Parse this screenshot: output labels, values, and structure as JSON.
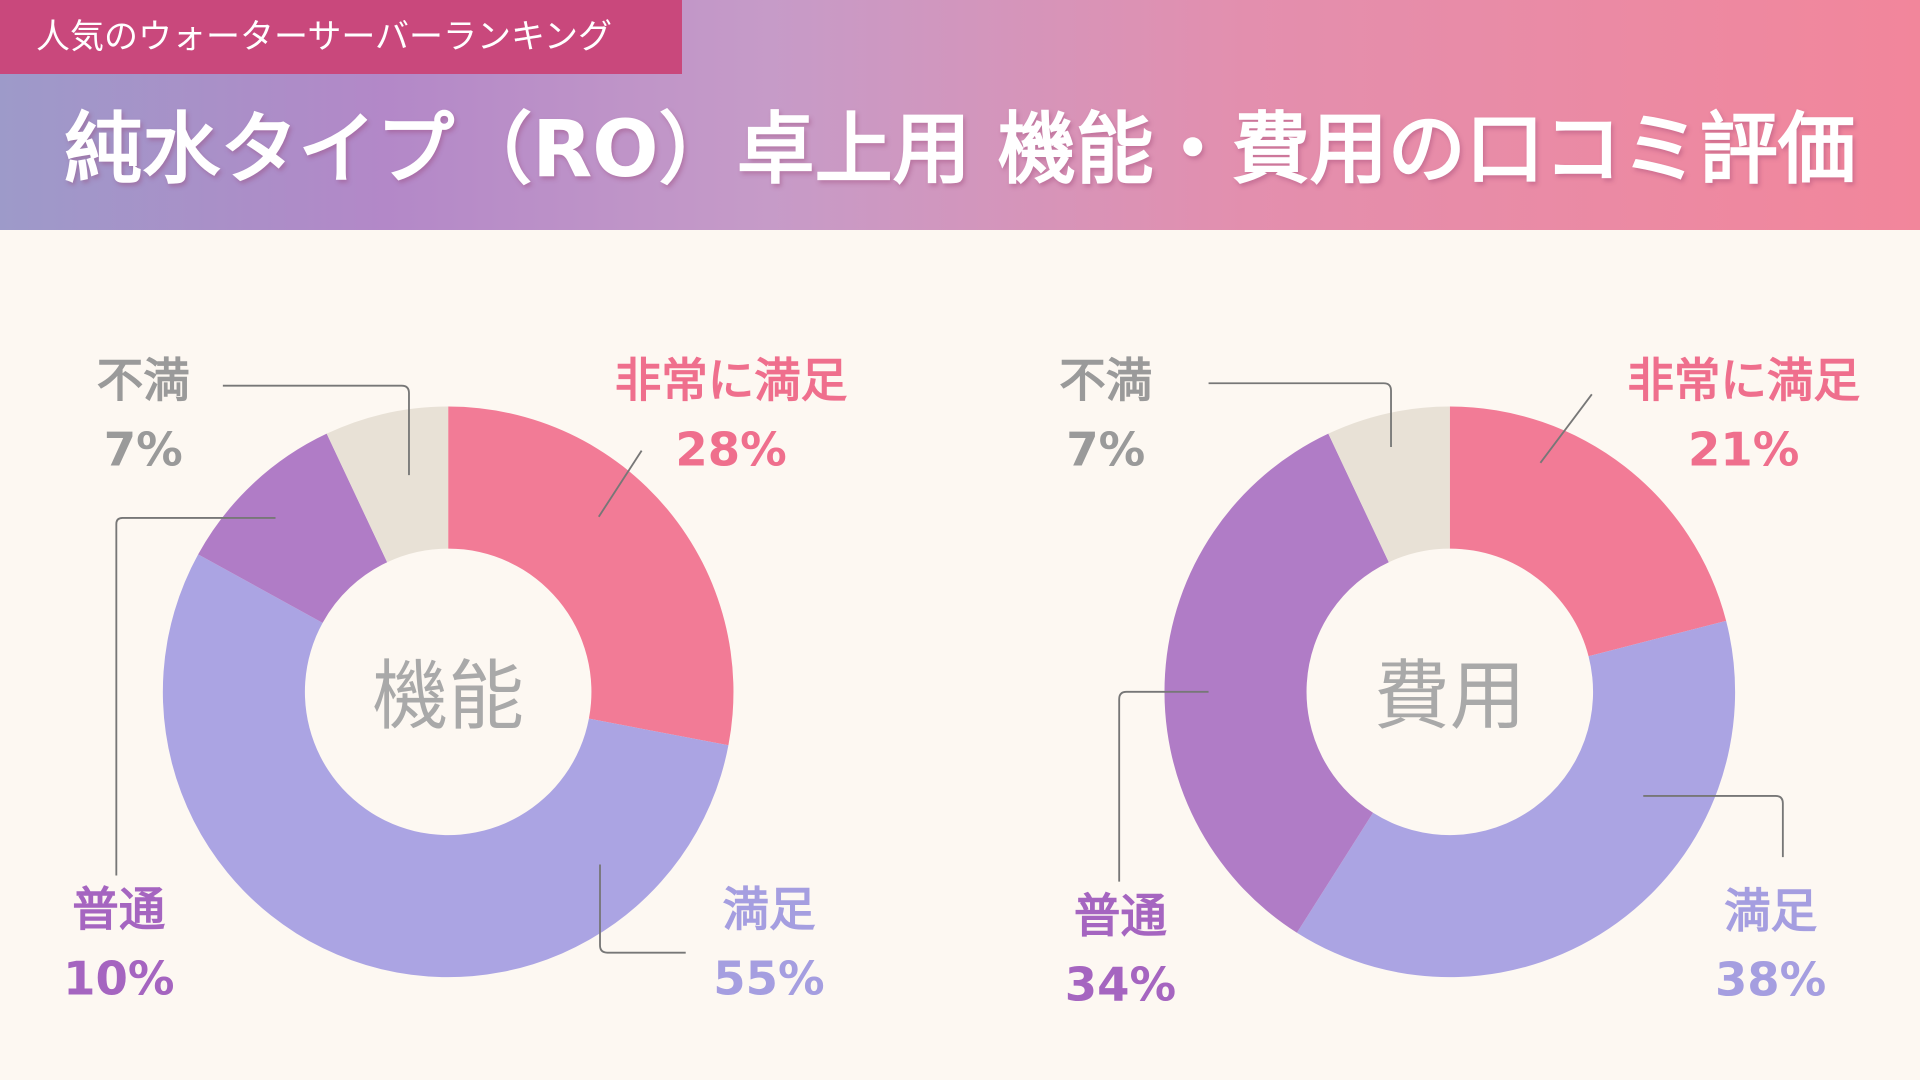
{
  "header": {
    "badge": "人気のウォーターサーバーランキング",
    "title": "純水タイプ（RO）卓上用 機能・費用の口コミ評価"
  },
  "colors": {
    "非常に満足": "#f27b96",
    "満足": "#aba4e3",
    "普通": "#b07cc6",
    "不満": "#e8e1d6",
    "label_非常に満足": "#ef6f8d",
    "label_満足": "#a59ee0",
    "label_普通": "#a565c0",
    "label_不満": "#9a9a9a"
  },
  "chart_data": [
    {
      "type": "pie",
      "donut": true,
      "title": "機能",
      "categories": [
        "非常に満足",
        "満足",
        "普通",
        "不満"
      ],
      "values": [
        28,
        55,
        10,
        7
      ],
      "labels": [
        "28%",
        "55%",
        "10%",
        "7%"
      ]
    },
    {
      "type": "pie",
      "donut": true,
      "title": "費用",
      "categories": [
        "非常に満足",
        "満足",
        "普通",
        "不満"
      ],
      "values": [
        21,
        38,
        34,
        7
      ],
      "labels": [
        "21%",
        "38%",
        "34%",
        "7%"
      ]
    }
  ]
}
